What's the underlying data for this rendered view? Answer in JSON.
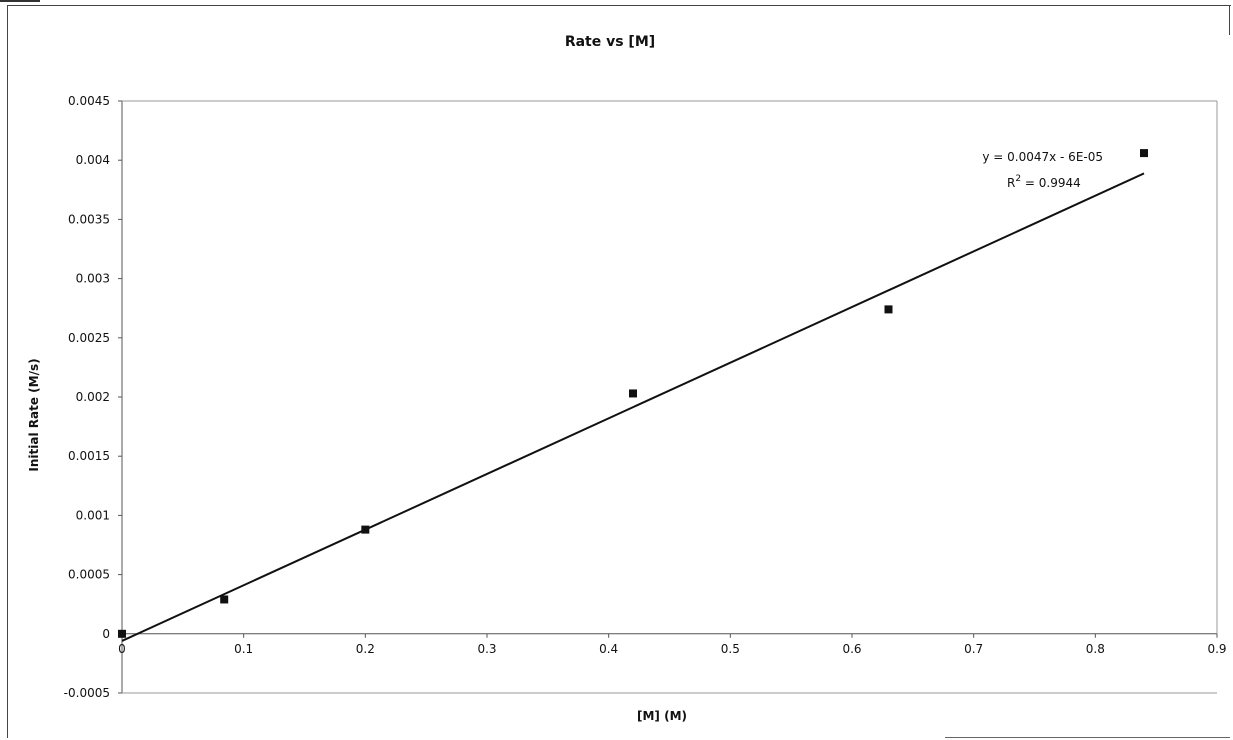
{
  "chart_data": {
    "type": "scatter",
    "title": "Rate vs [M]",
    "xlabel": "[M] (M)",
    "ylabel": "Initial Rate (M/s)",
    "xlim": [
      0,
      0.9
    ],
    "ylim": [
      -0.0005,
      0.0045
    ],
    "x_ticks": [
      "0",
      "0.1",
      "0.2",
      "0.3",
      "0.4",
      "0.5",
      "0.6",
      "0.7",
      "0.8",
      "0.9"
    ],
    "y_ticks": [
      "-0.0005",
      "0",
      "0.0005",
      "0.001",
      "0.0015",
      "0.002",
      "0.0025",
      "0.003",
      "0.0035",
      "0.004",
      "0.0045"
    ],
    "grid": false,
    "series": [
      {
        "x": [
          0,
          0.084,
          0.2,
          0.42,
          0.63,
          0.84
        ],
        "y": [
          0.0,
          0.00029,
          0.00088,
          0.00203,
          0.00274,
          0.00406
        ],
        "marker": "square",
        "color": "#111111"
      }
    ],
    "trendline": {
      "type": "linear",
      "slope": 0.0047,
      "intercept": -6e-05,
      "x_range": [
        0,
        0.84
      ],
      "equation_label": "y = 0.0047x - 6E-05",
      "r2_label": "R",
      "r2_sup": "2",
      "r2_value": " = 0.9944"
    }
  }
}
